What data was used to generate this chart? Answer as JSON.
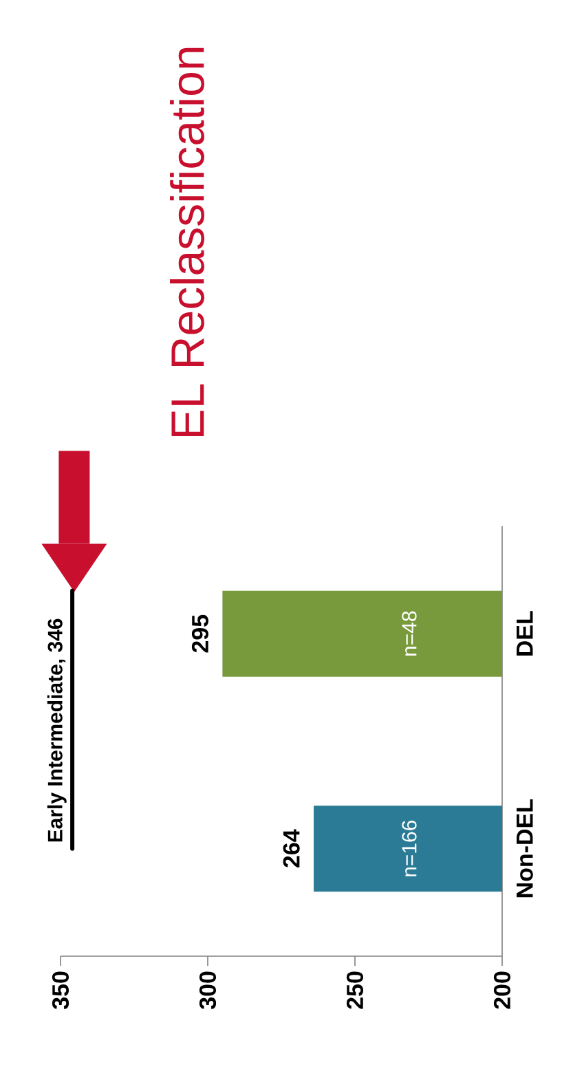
{
  "chart_data": {
    "type": "bar",
    "orientation": "horizontal",
    "title": "EL Reclassification",
    "categories": [
      "DEL",
      "Non-DEL"
    ],
    "values": [
      295,
      264
    ],
    "colors": [
      "#789a3d",
      "#2b7b96"
    ],
    "xlim": [
      350,
      200
    ],
    "xticks": [
      200,
      250,
      300,
      350
    ],
    "data_labels": true,
    "ref_lines": [
      {
        "axis": "x",
        "value": 346,
        "label": "Early Intermediate, 346",
        "color": "#000000"
      }
    ],
    "annotations": [
      "n=48",
      "n=166"
    ]
  }
}
